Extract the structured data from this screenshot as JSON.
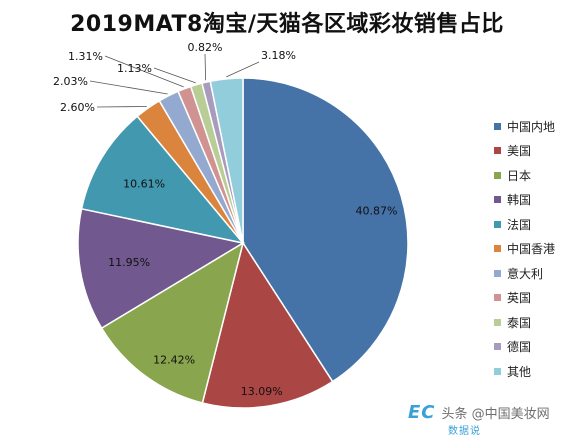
{
  "chart_data": {
    "type": "pie",
    "title": "2019MAT8淘宝/天猫各区域彩妆销售占比",
    "legend_position": "right",
    "slices": [
      {
        "name": "中国内地",
        "value": 40.87,
        "label": "40.87%",
        "color": "#4572a7"
      },
      {
        "name": "美国",
        "value": 13.09,
        "label": "13.09%",
        "color": "#aa4643"
      },
      {
        "name": "日本",
        "value": 12.42,
        "label": "12.42%",
        "color": "#89a54e"
      },
      {
        "name": "韩国",
        "value": 11.95,
        "label": "11.95%",
        "color": "#71588f"
      },
      {
        "name": "法国",
        "value": 10.61,
        "label": "10.61%",
        "color": "#4198af"
      },
      {
        "name": "中国香港",
        "value": 2.6,
        "label": "2.60%",
        "color": "#db843d"
      },
      {
        "name": "意大利",
        "value": 2.03,
        "label": "2.03%",
        "color": "#93a9cf"
      },
      {
        "name": "英国",
        "value": 1.31,
        "label": "1.31%",
        "color": "#d19392"
      },
      {
        "name": "泰国",
        "value": 1.13,
        "label": "1.13%",
        "color": "#b9cd96"
      },
      {
        "name": "德国",
        "value": 0.82,
        "label": "0.82%",
        "color": "#a99bbd"
      },
      {
        "name": "其他",
        "value": 3.18,
        "label": "3.18%",
        "color": "#92cddc"
      }
    ]
  },
  "watermark": {
    "logo": "EC",
    "sub": "数据说",
    "text": "头条 @中国美妆网"
  }
}
